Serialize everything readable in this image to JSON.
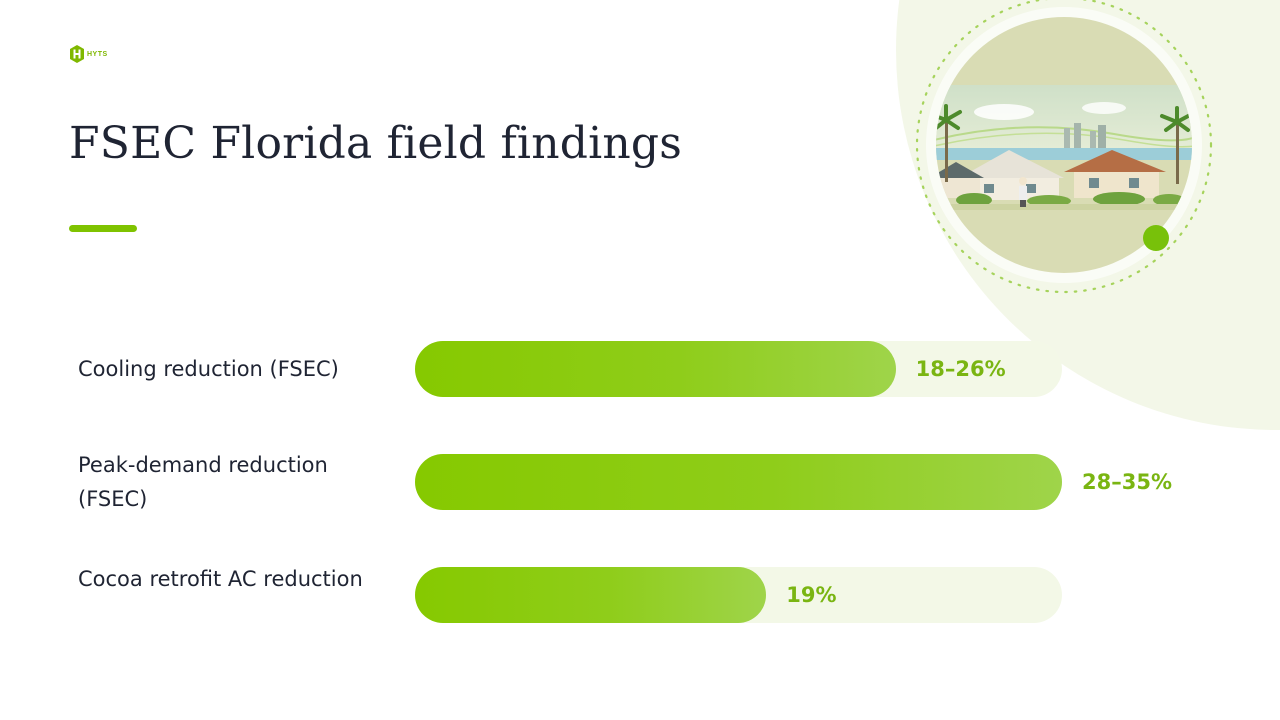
{
  "logo": {
    "text": "HYTS"
  },
  "slide": {
    "title": "FSEC Florida field findings"
  },
  "colors": {
    "accent": "#7fc300",
    "bar_fill": "#86c900",
    "bar_track": "#f3f8e7",
    "value_text": "#7ab512",
    "title_text": "#1f2433"
  },
  "illustration": {
    "name": "florida-homes-illustration"
  },
  "chart_data": {
    "type": "bar",
    "orientation": "horizontal",
    "unit": "%",
    "xlim": [
      0,
      35
    ],
    "grid": false,
    "categories": [
      "Cooling reduction (FSEC)",
      "Peak-demand reduction (FSEC)",
      "Cocoa retrofit AC reduction"
    ],
    "values": [
      26,
      35,
      19
    ],
    "value_labels": [
      "18–26%",
      "28–35%",
      "19%"
    ]
  }
}
